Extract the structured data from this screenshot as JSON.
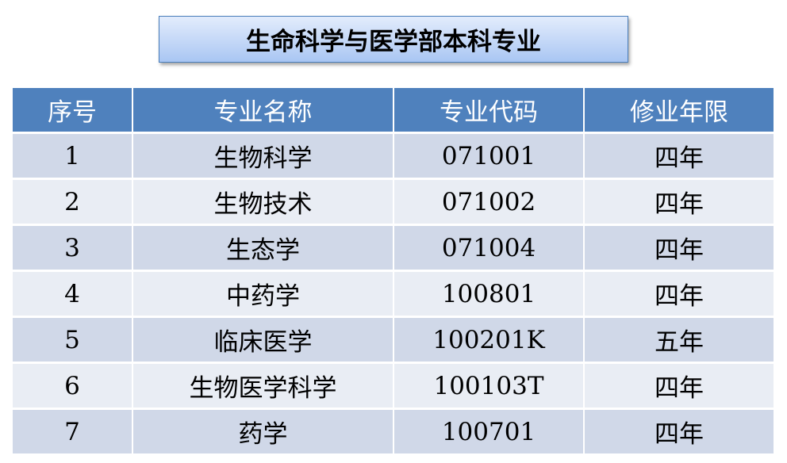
{
  "title": "生命科学与医学部本科专业",
  "colors": {
    "header": "#4f81bd",
    "row_odd": "#d0d8e8",
    "row_even": "#e9edf4"
  },
  "table": {
    "headers": [
      "序号",
      "专业名称",
      "专业代码",
      "修业年限"
    ],
    "rows": [
      [
        "1",
        "生物科学",
        "071001",
        "四年"
      ],
      [
        "2",
        "生物技术",
        "071002",
        "四年"
      ],
      [
        "3",
        "生态学",
        "071004",
        "四年"
      ],
      [
        "4",
        "中药学",
        "100801",
        "四年"
      ],
      [
        "5",
        "临床医学",
        "100201K",
        "五年"
      ],
      [
        "6",
        "生物医学科学",
        "100103T",
        "四年"
      ],
      [
        "7",
        "药学",
        "100701",
        "四年"
      ]
    ]
  }
}
